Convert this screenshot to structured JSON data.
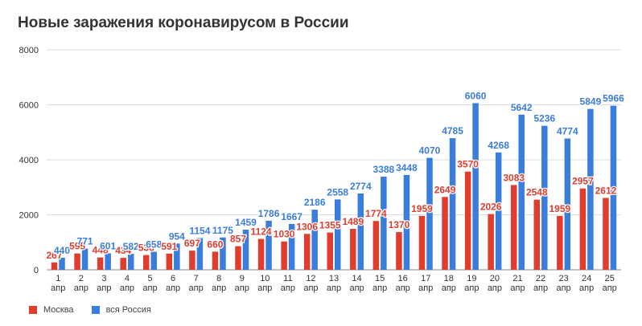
{
  "title": "Новые заражения коронавирусом в России",
  "chart_data": {
    "type": "bar",
    "categories": [
      "1",
      "2",
      "3",
      "4",
      "5",
      "6",
      "7",
      "8",
      "9",
      "10",
      "11",
      "12",
      "13",
      "14",
      "15",
      "16",
      "17",
      "18",
      "19",
      "20",
      "21",
      "22",
      "23",
      "24",
      "25"
    ],
    "category_sublabel": "апр",
    "series": [
      {
        "name": "Москва",
        "color": "#e03d2f",
        "values": [
          267,
          595,
          448,
          434,
          536,
          591,
          697,
          660,
          857,
          1124,
          1030,
          1306,
          1355,
          1489,
          1774,
          1370,
          1959,
          2649,
          3570,
          2026,
          3083,
          2548,
          1959,
          2957,
          2612
        ]
      },
      {
        "name": "вся Россия",
        "color": "#3b7ddd",
        "values": [
          440,
          771,
          601,
          582,
          658,
          954,
          1154,
          1175,
          1459,
          1786,
          1667,
          2186,
          2558,
          2774,
          3388,
          3448,
          4070,
          4785,
          6060,
          4268,
          5642,
          5236,
          4774,
          5849,
          5966
        ]
      }
    ],
    "y_ticks": [
      "0",
      "2000",
      "4000",
      "6000",
      "8000"
    ],
    "ylim": [
      0,
      8000
    ],
    "grid": true,
    "legend_position": "bottom-left"
  }
}
